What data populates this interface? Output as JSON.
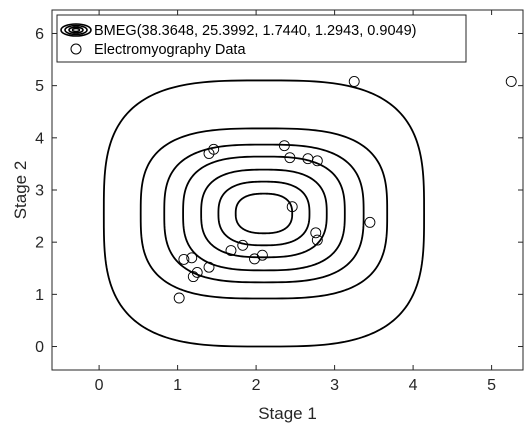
{
  "chart_data": {
    "type": "scatter",
    "xlabel": "Stage 1",
    "ylabel": "Stage 2",
    "xlim": [
      -0.6,
      5.4
    ],
    "ylim": [
      -0.45,
      6.45
    ],
    "xticks": [
      "0",
      "1",
      "2",
      "3",
      "4",
      "5"
    ],
    "yticks": [
      "0",
      "1",
      "2",
      "3",
      "4",
      "5",
      "6"
    ],
    "grid": false,
    "legend_position": "top-left",
    "legend": [
      {
        "label": "BMEG(38.3648, 25.3992, 1.7440, 1.2943, 0.9049)",
        "marker": "contour"
      },
      {
        "label": "Electromyography Data",
        "marker": "open-circle"
      }
    ],
    "contour": {
      "center": [
        2.1,
        2.55
      ],
      "level_radii": [
        [
          0.36,
          0.38
        ],
        [
          0.58,
          0.61
        ],
        [
          0.8,
          0.84
        ],
        [
          1.03,
          1.09
        ],
        [
          1.27,
          1.32
        ],
        [
          1.57,
          1.63
        ],
        [
          2.04,
          2.55
        ]
      ],
      "color": "#000000"
    },
    "series": [
      {
        "name": "Electromyography Data",
        "points": [
          [
            1.02,
            0.93
          ],
          [
            1.08,
            1.67
          ],
          [
            1.18,
            1.7
          ],
          [
            1.2,
            1.34
          ],
          [
            1.25,
            1.42
          ],
          [
            1.4,
            1.52
          ],
          [
            1.4,
            3.7
          ],
          [
            1.46,
            3.78
          ],
          [
            1.68,
            1.84
          ],
          [
            1.83,
            1.94
          ],
          [
            1.98,
            1.68
          ],
          [
            2.08,
            1.75
          ],
          [
            2.36,
            3.85
          ],
          [
            2.43,
            3.62
          ],
          [
            2.46,
            2.68
          ],
          [
            2.66,
            3.6
          ],
          [
            2.76,
            2.18
          ],
          [
            2.78,
            2.04
          ],
          [
            2.78,
            3.56
          ],
          [
            3.25,
            5.08
          ],
          [
            3.45,
            2.38
          ],
          [
            5.25,
            5.08
          ]
        ],
        "color": "#000000"
      }
    ]
  }
}
